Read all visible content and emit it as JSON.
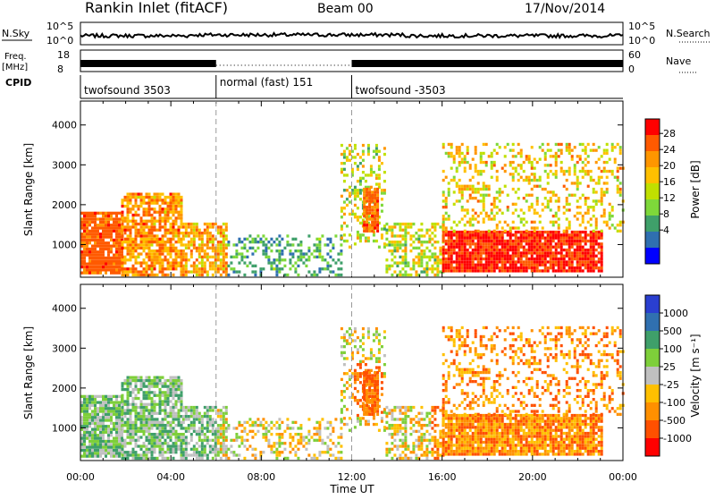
{
  "header": {
    "title": "Rankin Inlet (fitACF)",
    "beam": "Beam 00",
    "date": "17/Nov/2014"
  },
  "top_panels": {
    "nsky_label": "N.Sky",
    "nsky_ticks": [
      "10^5",
      "10^0"
    ],
    "nsearch_label": "N.Search",
    "nsearch_ticks": [
      "10^5",
      "10^0"
    ],
    "freq_label": "Freq.",
    "freq_unit": "[MHz]",
    "freq_ticks": [
      "18",
      "8"
    ],
    "nave_label": "Nave",
    "nave_ticks": [
      "60",
      "0"
    ],
    "cpid_label": "CPID",
    "cpid_segments": [
      {
        "label": "twofsound 3503",
        "start": "00:00",
        "end": "06:00"
      },
      {
        "label": "normal (fast) 151",
        "start": "06:00",
        "end": "12:00"
      },
      {
        "label": "twofsound -3503",
        "start": "12:00",
        "end": "24:00"
      }
    ]
  },
  "chart_data": [
    {
      "type": "heatmap",
      "panel": "power",
      "ylabel": "Slant Range [km]",
      "xlabel": "",
      "x_ticks": [
        "00:00",
        "04:00",
        "08:00",
        "12:00",
        "16:00",
        "20:00",
        "00:00"
      ],
      "y_ticks": [
        "1000",
        "2000",
        "3000",
        "4000"
      ],
      "ylim": [
        180,
        4600
      ],
      "xlim_hours": [
        0,
        24
      ],
      "colorbar_label": "Power [dB]",
      "colorbar_ticks": [
        "28",
        "24",
        "20",
        "16",
        "12",
        "8",
        "4"
      ],
      "colorbar_colors": [
        "#ff0000",
        "#ff5a00",
        "#ff9600",
        "#ffc000",
        "#c0e000",
        "#7ed83a",
        "#3fa06a",
        "#2f6fb0",
        "#0000ff"
      ]
    },
    {
      "type": "heatmap",
      "panel": "velocity",
      "ylabel": "Slant Range [km]",
      "xlabel": "Time UT",
      "x_ticks": [
        "00:00",
        "04:00",
        "08:00",
        "12:00",
        "16:00",
        "20:00",
        "00:00"
      ],
      "y_ticks": [
        "1000",
        "2000",
        "3000",
        "4000"
      ],
      "ylim": [
        180,
        4600
      ],
      "xlim_hours": [
        0,
        24
      ],
      "colorbar_label": "Velocity [m s⁻¹]",
      "colorbar_ticks": [
        "1000",
        "500",
        "100",
        "25",
        "-25",
        "-100",
        "-500",
        "-1000"
      ],
      "colorbar_colors": [
        "#2a3fd0",
        "#3070b0",
        "#3f9f6a",
        "#7ecf3a",
        "#c0c0c0",
        "#ffc000",
        "#ff9000",
        "#ff5000",
        "#ff0000"
      ]
    }
  ]
}
